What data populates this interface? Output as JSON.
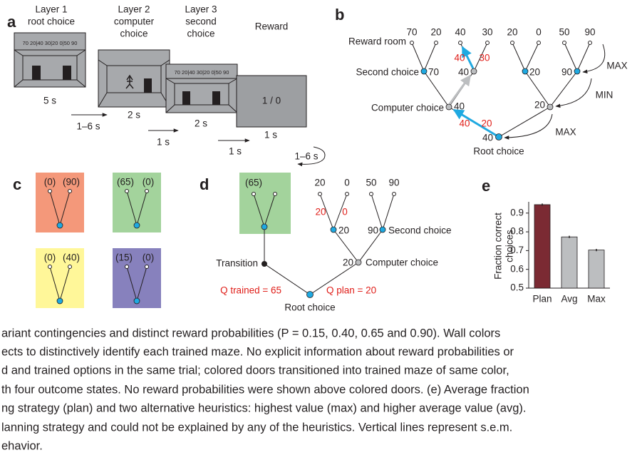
{
  "panel_a": {
    "label": "a",
    "layer1": [
      "Layer 1",
      "root choice"
    ],
    "layer2": [
      "Layer 2",
      "computer",
      "choice"
    ],
    "layer3": [
      "Layer 3",
      "second",
      "choice"
    ],
    "reward": "Reward",
    "screen_labels": [
      "70 20|40 30|20 0|50 90",
      "70 20|40 30|20 0|50 90"
    ],
    "reward_screen": "1 / 0",
    "durations": [
      "5 s",
      "2 s",
      "2 s",
      "1 s"
    ],
    "intervals": [
      "1–6 s",
      "1 s",
      "1 s",
      "1–6 s"
    ]
  },
  "panel_b": {
    "label": "b",
    "rewards": [
      70,
      20,
      40,
      30,
      20,
      0,
      50,
      90
    ],
    "levels": [
      "Reward room",
      "Second choice",
      "Computer choice",
      "Root choice"
    ],
    "second_values": [
      70,
      40,
      20,
      90
    ],
    "computer_values": [
      40,
      20
    ],
    "root_value": 40,
    "red_second": [
      40,
      30
    ],
    "red_root": [
      40,
      20
    ],
    "operators": [
      "MAX",
      "MIN",
      "MAX"
    ]
  },
  "panel_c": {
    "label": "c",
    "boxes": [
      [
        "(0)",
        "(90)"
      ],
      [
        "(65)",
        "(0)"
      ],
      [
        "(0)",
        "(40)"
      ],
      [
        "(15)",
        "(0)"
      ]
    ]
  },
  "panel_d": {
    "label": "d",
    "trained": "(65)",
    "rewards": [
      20,
      0,
      50,
      90
    ],
    "red_second": [
      20,
      0
    ],
    "second_values": [
      20,
      90
    ],
    "computer_value": 20,
    "levels": [
      "Second choice",
      "Computer choice",
      "Transition",
      "Root choice"
    ],
    "q_trained": "Q trained = 65",
    "q_plan": "Q plan = 20"
  },
  "chart_data": {
    "type": "bar",
    "label": "e",
    "y_label": [
      "Fraction correct",
      "choices"
    ],
    "categories": [
      "Plan",
      "Avg",
      "Max"
    ],
    "values": [
      0.945,
      0.773,
      0.703
    ],
    "errors": [
      0.006,
      0.006,
      0.006
    ],
    "colors": [
      "#7b2a33",
      "#bcbec0",
      "#bcbec0"
    ],
    "ylim": [
      0.5,
      0.96
    ],
    "yticks": [
      0.5,
      0.6,
      0.7,
      0.8,
      0.9
    ]
  },
  "caption": [
    "ariant contingencies and distinct reward probabilities (P = 0.15, 0.40, 0.65 and 0.90). Wall colors",
    "ects to distinctively identify each trained maze. No explicit information about reward probabilities or",
    "d and trained options in the same trial; colored doors transitioned into trained maze of same color,",
    "th four outcome states. No reward probabilities were shown above colored doors. (e) Average fraction",
    "ng strategy (plan) and two alternative heuristics: highest value (max) and higher average value (avg).",
    "lanning strategy and could not be explained by any of the heuristics. Vertical lines represent s.e.m.",
    "ehavior."
  ]
}
